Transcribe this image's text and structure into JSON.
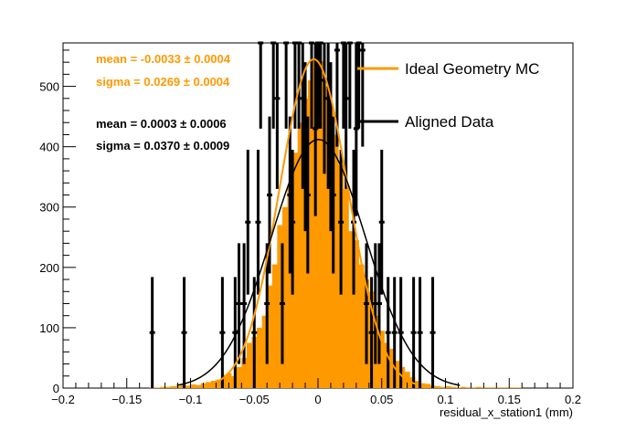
{
  "chart_data": {
    "type": "histogram",
    "xlabel": "residual_x_station1 (mm)",
    "ylabel": "",
    "xlim": [
      -0.2,
      0.2
    ],
    "ylim": [
      0,
      572
    ],
    "x_ticks": [
      "−0.2",
      "−0.15",
      "−0.1",
      "−0.05",
      "0",
      "0.05",
      "0.1",
      "0.15",
      "0.2"
    ],
    "x_tick_values": [
      -0.2,
      -0.15,
      -0.1,
      -0.05,
      0,
      0.05,
      0.1,
      0.15,
      0.2
    ],
    "y_ticks": [
      "0",
      "100",
      "200",
      "300",
      "400",
      "500"
    ],
    "y_tick_values": [
      0,
      100,
      200,
      300,
      400,
      500
    ],
    "grid": false,
    "legend_position": "top-right",
    "colors": {
      "mc": "#ff9900",
      "data": "#000000"
    },
    "series": [
      {
        "name": "Ideal Geometry MC",
        "kind": "filled-histogram",
        "bin_width": 0.004,
        "x": [
          -0.13,
          -0.126,
          -0.122,
          -0.118,
          -0.114,
          -0.11,
          -0.106,
          -0.102,
          -0.098,
          -0.094,
          -0.09,
          -0.086,
          -0.082,
          -0.078,
          -0.074,
          -0.07,
          -0.066,
          -0.062,
          -0.058,
          -0.054,
          -0.05,
          -0.046,
          -0.042,
          -0.038,
          -0.034,
          -0.03,
          -0.026,
          -0.022,
          -0.018,
          -0.014,
          -0.01,
          -0.006,
          -0.002,
          0.002,
          0.006,
          0.01,
          0.014,
          0.018,
          0.022,
          0.026,
          0.03,
          0.034,
          0.038,
          0.042,
          0.046,
          0.05,
          0.054,
          0.058,
          0.062,
          0.066,
          0.07,
          0.074,
          0.078,
          0.082,
          0.086,
          0.09,
          0.094,
          0.098,
          0.102,
          0.106,
          0.11,
          0.114,
          0.118,
          0.122,
          0.126,
          0.13,
          0.134,
          0.138,
          0.142,
          0.146,
          0.15,
          0.154,
          0.158
        ],
        "values": [
          1,
          1,
          2,
          2,
          3,
          3,
          5,
          4,
          6,
          5,
          8,
          10,
          12,
          14,
          22,
          25,
          20,
          35,
          50,
          75,
          85,
          100,
          120,
          170,
          205,
          270,
          300,
          335,
          390,
          440,
          480,
          510,
          545,
          542,
          500,
          470,
          420,
          370,
          330,
          260,
          245,
          205,
          180,
          160,
          120,
          95,
          75,
          65,
          45,
          35,
          27,
          18,
          12,
          8,
          7,
          4,
          3,
          2,
          3,
          2,
          1,
          2,
          1,
          1,
          2,
          1,
          1,
          1,
          1,
          1,
          1,
          1,
          1
        ]
      },
      {
        "name": "Ideal Geometry MC fit",
        "kind": "gaussian-fit",
        "amplitude": 545,
        "mean": -0.0033,
        "sigma": 0.0269
      },
      {
        "name": "Aligned Data",
        "kind": "points-with-errors",
        "x": [
          -0.13,
          -0.105,
          -0.075,
          -0.065,
          -0.062,
          -0.058,
          -0.055,
          -0.05,
          -0.047,
          -0.045,
          -0.04,
          -0.038,
          -0.035,
          -0.032,
          -0.028,
          -0.025,
          -0.022,
          -0.02,
          -0.018,
          -0.015,
          -0.012,
          -0.01,
          -0.008,
          -0.005,
          -0.002,
          0.0,
          0.002,
          0.005,
          0.008,
          0.01,
          0.012,
          0.015,
          0.018,
          0.02,
          0.022,
          0.025,
          0.028,
          0.03,
          0.032,
          0.035,
          0.038,
          0.042,
          0.045,
          0.048,
          0.05,
          0.055,
          0.06,
          0.065,
          0.075,
          0.08,
          0.09
        ],
        "values": [
          92,
          92,
          92,
          92,
          140,
          140,
          275,
          92,
          275,
          600,
          140,
          320,
          600,
          480,
          140,
          600,
          320,
          275,
          600,
          600,
          480,
          400,
          320,
          600,
          430,
          600,
          600,
          510,
          480,
          400,
          320,
          560,
          275,
          600,
          480,
          600,
          275,
          430,
          600,
          560,
          140,
          92,
          140,
          140,
          275,
          92,
          92,
          92,
          92,
          92,
          92
        ],
        "errors": [
          92,
          92,
          92,
          92,
          100,
          100,
          120,
          92,
          120,
          170,
          100,
          130,
          170,
          150,
          100,
          170,
          130,
          120,
          170,
          170,
          150,
          140,
          130,
          170,
          145,
          170,
          170,
          155,
          150,
          140,
          130,
          160,
          120,
          170,
          150,
          170,
          120,
          145,
          170,
          160,
          100,
          92,
          100,
          100,
          120,
          92,
          92,
          92,
          92,
          92,
          92
        ]
      },
      {
        "name": "Aligned Data fit",
        "kind": "gaussian-fit",
        "amplitude": 412,
        "mean": 0.0003,
        "sigma": 0.037
      }
    ]
  },
  "stats": {
    "mc_mean": "mean = -0.0033 ± 0.0004",
    "mc_sigma": "sigma = 0.0269 ± 0.0004",
    "data_mean": "mean = 0.0003 ± 0.0006",
    "data_sigma": "sigma = 0.0370 ± 0.0009"
  },
  "legend": {
    "mc": "Ideal Geometry MC",
    "data": "Aligned Data"
  }
}
